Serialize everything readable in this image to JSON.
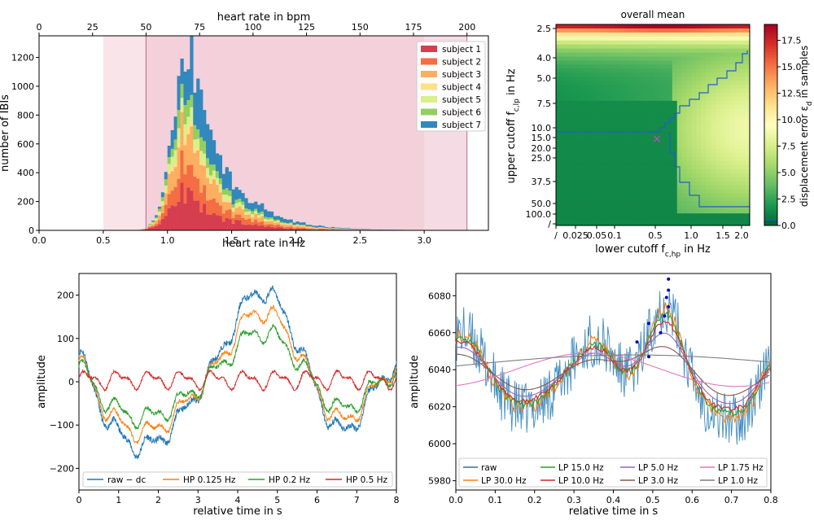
{
  "chart_data": [
    {
      "id": "hist",
      "type": "bar",
      "stacked": true,
      "title": "",
      "xlabel": "heart rate in Hz",
      "ylabel": "number of IBIs",
      "x2label": "heart rate in bpm",
      "xlim": [
        0,
        3.5
      ],
      "ylim": [
        0,
        1350
      ],
      "xticks": [
        "0.0",
        "0.5",
        "1.0",
        "1.5",
        "2.0",
        "2.5",
        "3.0"
      ],
      "yticks": [
        "0",
        "200",
        "400",
        "600",
        "800",
        "1000",
        "1200"
      ],
      "x2ticks": [
        "0",
        "25",
        "50",
        "75",
        "100",
        "125",
        "150",
        "175",
        "200"
      ],
      "bands": [
        {
          "from": 0.5,
          "to": 3.0
        },
        {
          "from": 0.833,
          "to": 3.333
        }
      ],
      "series": [
        {
          "name": "subject 1",
          "color": "#d53e4f",
          "peak": 270
        },
        {
          "name": "subject 2",
          "color": "#f46d43",
          "peak": 190
        },
        {
          "name": "subject 3",
          "color": "#fdae61",
          "peak": 240
        },
        {
          "name": "subject 4",
          "color": "#fee08b",
          "peak": 40
        },
        {
          "name": "subject 5",
          "color": "#d9ef8b",
          "peak": 100
        },
        {
          "name": "subject 6",
          "color": "#91cf60",
          "peak": 120
        },
        {
          "name": "subject 7",
          "color": "#3288bd",
          "peak": 320
        }
      ],
      "peak_total": 1290,
      "peak_hz": 1.15,
      "legend": "top-right"
    },
    {
      "id": "heatmap",
      "type": "heatmap",
      "title": "overall mean",
      "xlabel": "lower cutoff f_c,hp in Hz",
      "ylabel": "upper cutoff f_c,lp in Hz",
      "xticks": [
        "/",
        "0.025",
        "0.05",
        "0.1",
        "0.5",
        "1.0",
        "1.5",
        "2.0"
      ],
      "yticks": [
        "2.5",
        "4.0",
        "5.0",
        "7.5",
        "10.0",
        "15.0",
        "20.0",
        "25.0",
        "37.5",
        "50.0",
        "100.0",
        "/"
      ],
      "colorbar": {
        "label": "displacement error ε_d in samples",
        "ticks": [
          "0.0",
          "2.5",
          "5.0",
          "7.5",
          "10.0",
          "12.5",
          "15.0",
          "17.5"
        ],
        "min": 0,
        "max": 19
      },
      "marker": {
        "x_hz": 0.5,
        "y_hz": 20.0,
        "symbol": "×",
        "color": "#d040d0"
      }
    },
    {
      "id": "highpass",
      "type": "line",
      "xlabel": "relative time in s",
      "ylabel": "amplitude",
      "xlim": [
        0,
        8
      ],
      "ylim": [
        -250,
        250
      ],
      "xticks": [
        "0",
        "1",
        "2",
        "3",
        "4",
        "5",
        "6",
        "7",
        "8"
      ],
      "yticks": [
        "−200",
        "−100",
        "0",
        "100",
        "200"
      ],
      "series": [
        {
          "name": "raw − dc",
          "color": "#1f77b4"
        },
        {
          "name": "HP 0.125 Hz",
          "color": "#ff7f0e"
        },
        {
          "name": "HP 0.2 Hz",
          "color": "#2ca02c"
        },
        {
          "name": "HP 0.5 Hz",
          "color": "#d62728"
        }
      ],
      "legend": "bottom"
    },
    {
      "id": "lowpass",
      "type": "line",
      "xlabel": "relative time in s",
      "ylabel": "amplitude",
      "xlim": [
        0,
        0.8
      ],
      "ylim": [
        5975,
        6092
      ],
      "xticks": [
        "0.0",
        "0.1",
        "0.2",
        "0.3",
        "0.4",
        "0.5",
        "0.6",
        "0.7",
        "0.8"
      ],
      "yticks": [
        "5980",
        "6000",
        "6020",
        "6040",
        "6060",
        "6080"
      ],
      "series": [
        {
          "name": "raw",
          "color": "#1f77b4"
        },
        {
          "name": "LP 30.0 Hz",
          "color": "#ff7f0e"
        },
        {
          "name": "LP 15.0 Hz",
          "color": "#2ca02c"
        },
        {
          "name": "LP 10.0 Hz",
          "color": "#d62728"
        },
        {
          "name": "LP 5.0 Hz",
          "color": "#9467bd"
        },
        {
          "name": "LP 3.0 Hz",
          "color": "#8c564b"
        },
        {
          "name": "LP 1.75 Hz",
          "color": "#e377c2"
        },
        {
          "name": "LP 1.0 Hz",
          "color": "#7f7f7f"
        }
      ],
      "peak_markers_color": "#0000cc",
      "legend": "bottom"
    }
  ]
}
